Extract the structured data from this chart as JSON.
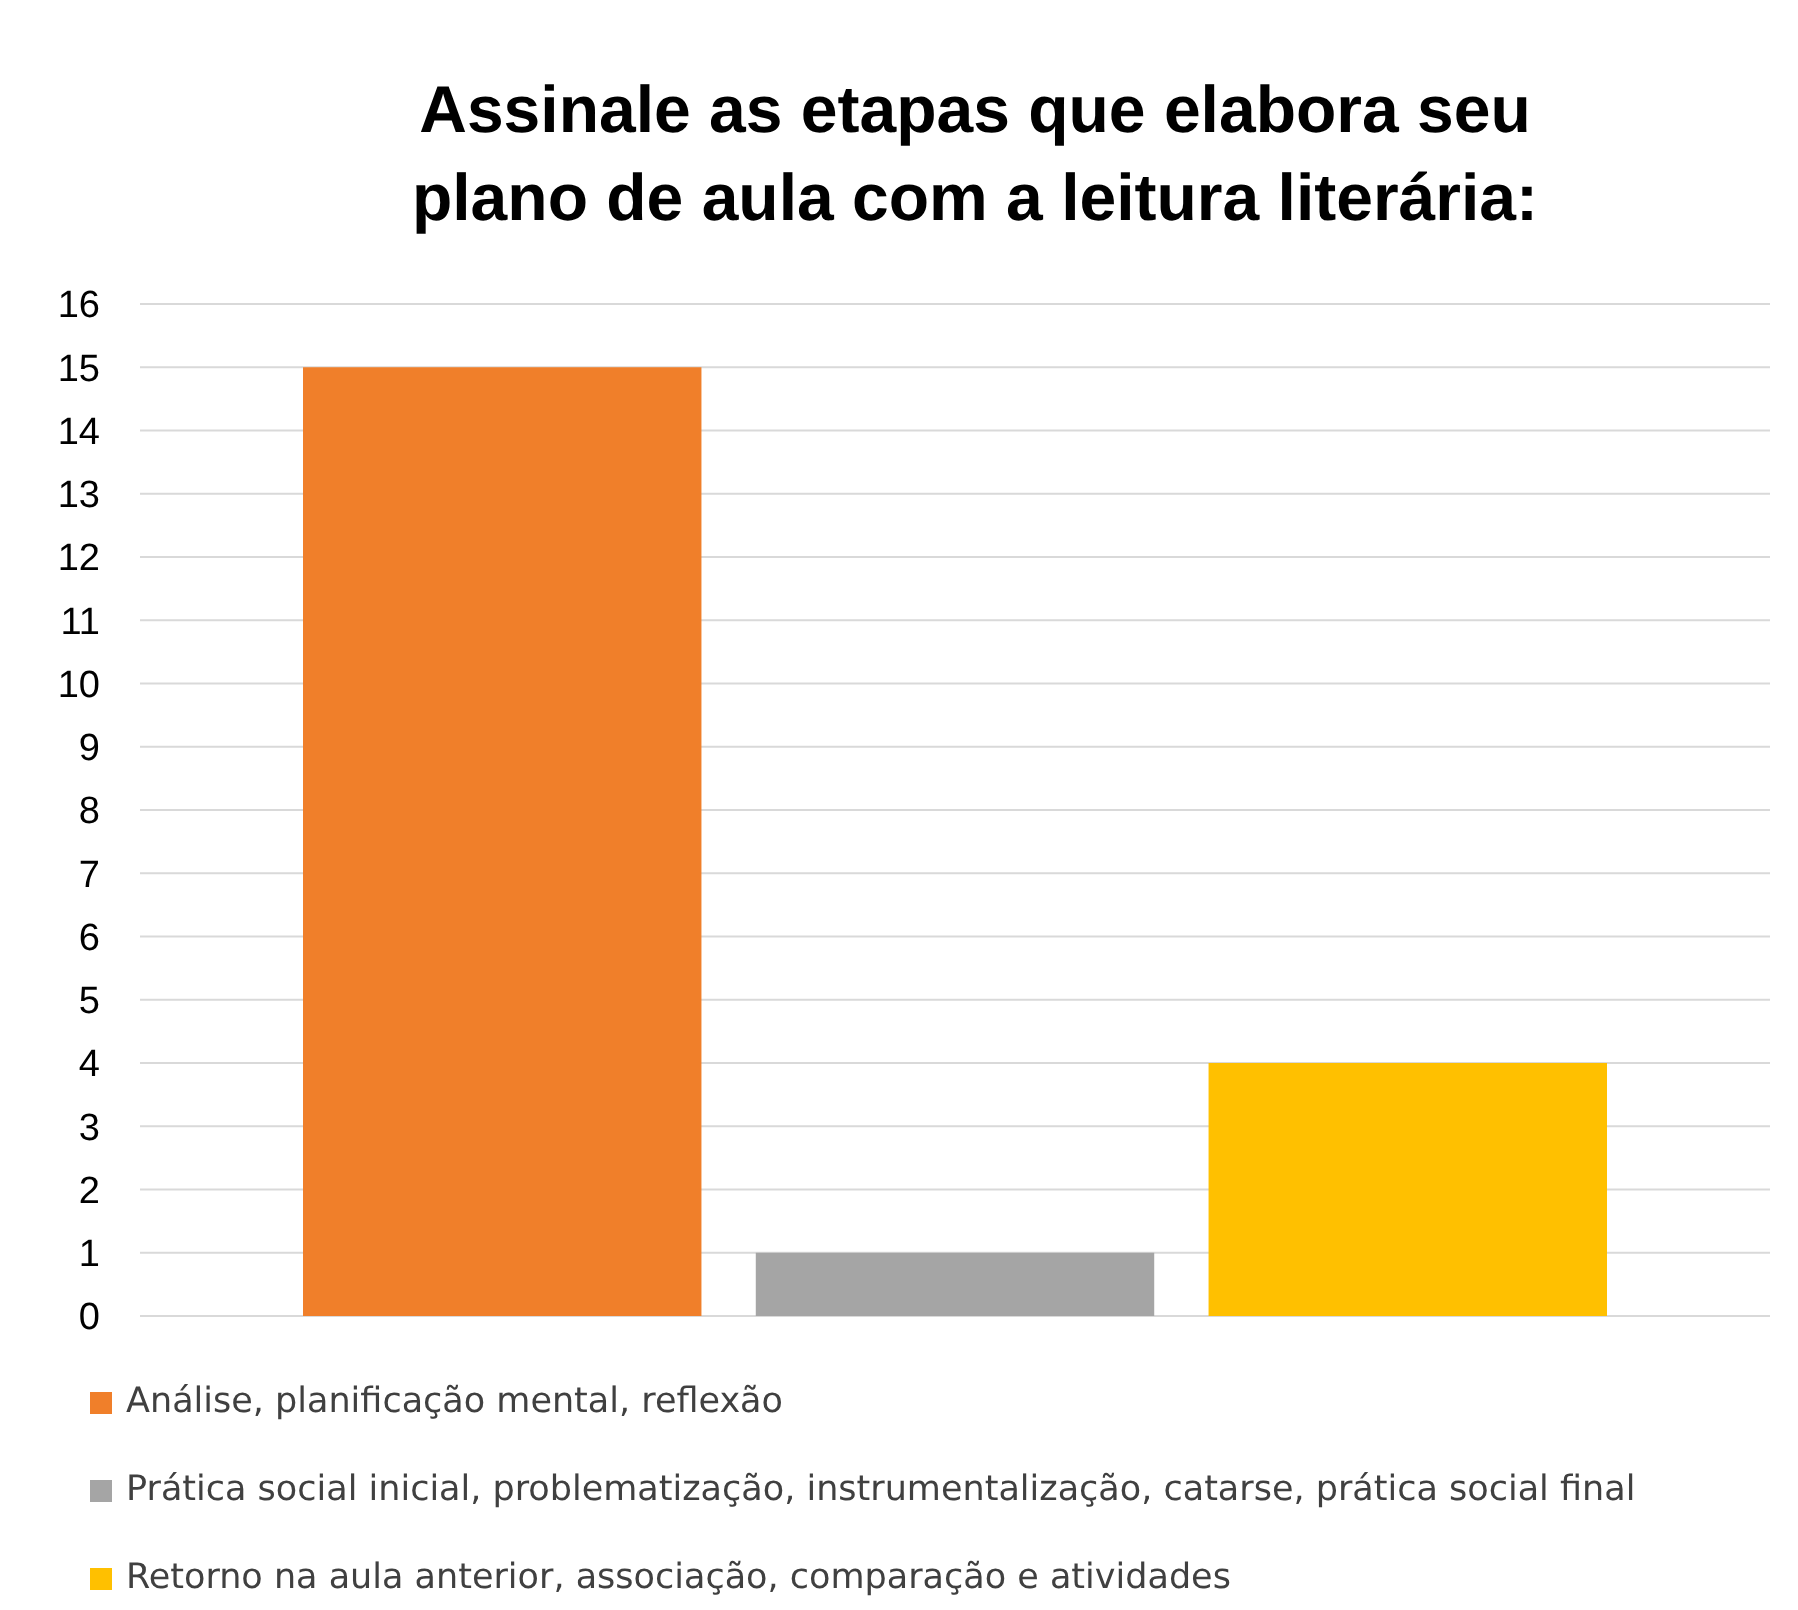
{
  "chart_data": {
    "type": "bar",
    "title": "Assinale as etapas que elabora seu\nplano de aula com a leitura literária:",
    "categories": [
      null
    ],
    "series": [
      {
        "name": "Análise, planificação mental, reflexão",
        "color": "#f07f2a",
        "values": [
          15
        ]
      },
      {
        "name": "Prática social inicial, problematização, instrumentalização, catarse, prática social final",
        "color": "#a5a5a5",
        "values": [
          1
        ]
      },
      {
        "name": "Retorno na aula anterior, associação, comparação e atividades",
        "color": "#ffc000",
        "values": [
          4
        ]
      }
    ],
    "ylim": [
      0,
      16
    ],
    "yticks": [
      0,
      1,
      2,
      3,
      4,
      5,
      6,
      7,
      8,
      9,
      10,
      11,
      12,
      13,
      14,
      15,
      16
    ],
    "grid": "y",
    "legend": "bottom"
  }
}
